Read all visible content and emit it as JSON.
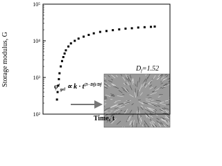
{
  "chart_data": {
    "type": "scatter",
    "y_label": "Storage modulus, G",
    "x_label": "Time, t",
    "log_y": true,
    "ylim": [
      100,
      100000
    ],
    "yticks": [
      {
        "value": 100,
        "label": "10²"
      },
      {
        "value": 1000,
        "label": "10³"
      },
      {
        "value": 10000,
        "label": "10⁴"
      },
      {
        "value": 100000,
        "label": "10⁵"
      }
    ],
    "xlim": [
      0,
      100
    ],
    "color": "#000000",
    "x": [
      11,
      11.5,
      12,
      12.5,
      13,
      14,
      15,
      16,
      17,
      18,
      20,
      22,
      25,
      28,
      32,
      36,
      40,
      45,
      50,
      55,
      60,
      65,
      70,
      75,
      80,
      85,
      88
    ],
    "values": [
      250,
      400,
      600,
      900,
      1300,
      2000,
      2800,
      3600,
      4500,
      5500,
      7000,
      8500,
      10000,
      11500,
      13000,
      14500,
      16000,
      17500,
      18500,
      19500,
      20500,
      21500,
      22000,
      23000,
      23500,
      24000,
      24500
    ],
    "annotations": {
      "formula_base": "φ′",
      "formula_sub": "gel",
      "formula_mid": " ∝ k · t",
      "formula_sup": "(3−Df)/Df",
      "inset_label_base": "D",
      "inset_label_sub": "f",
      "inset_label_rest": "=1.52"
    }
  }
}
